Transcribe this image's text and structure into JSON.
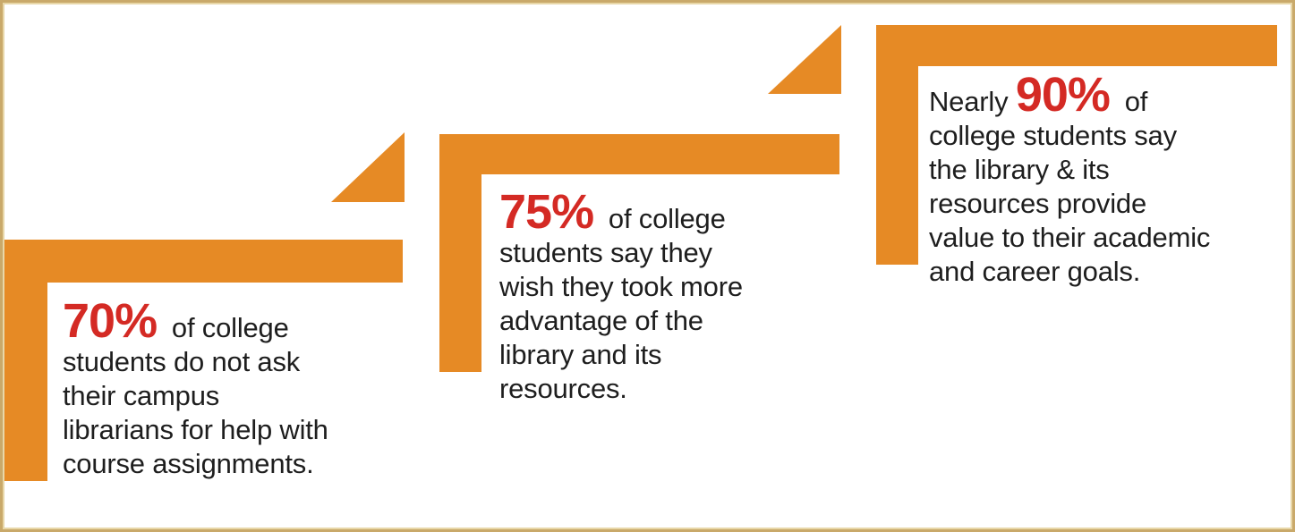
{
  "colors": {
    "accent": "#e68a25",
    "highlight": "#d42a24",
    "text": "#1e1e1e"
  },
  "stats": [
    {
      "prefix": "",
      "percent": "70%",
      "lines": [
        "of college",
        "students do not ask",
        "their campus",
        "librarians for help with",
        "course assignments."
      ]
    },
    {
      "prefix": "",
      "percent": "75%",
      "lines": [
        "of college",
        "students say they",
        "wish they took more",
        "advantage of the",
        "library and its",
        "resources."
      ]
    },
    {
      "prefix": "Nearly",
      "percent": "90%",
      "lines": [
        "of",
        "college students say",
        "the library & its",
        "resources provide",
        "value to their academic",
        "and career goals."
      ]
    }
  ]
}
